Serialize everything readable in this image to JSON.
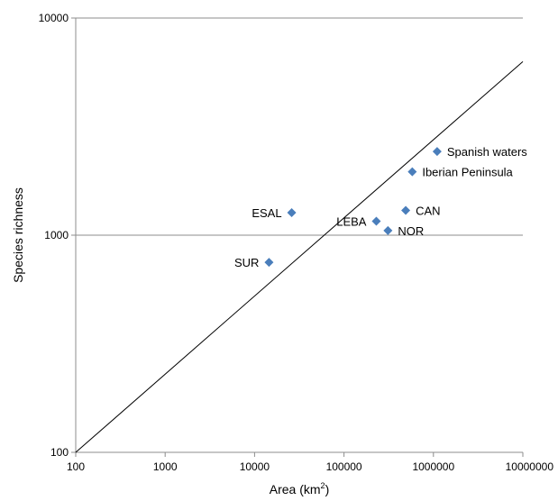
{
  "chart_data": {
    "type": "scatter",
    "title": "",
    "xlabel": "Area (km",
    "xlabel_sup": "2",
    "xlabel_suffix": ")",
    "ylabel": "Species richness",
    "x_scale": "log",
    "y_scale": "log",
    "xlim": [
      100,
      10000000
    ],
    "ylim": [
      100,
      10000
    ],
    "x_ticks": [
      "100",
      "1000",
      "10000",
      "100000",
      "1000000",
      "10000000"
    ],
    "y_ticks": [
      "100",
      "1000",
      "10000"
    ],
    "y_gridlines": [
      1000,
      10000
    ],
    "marker_color": "#4a7ebb",
    "points": [
      {
        "label": "Spanish waters",
        "x": 1100000,
        "y": 2430,
        "label_side": "right"
      },
      {
        "label": "Iberian Peninsula",
        "x": 580000,
        "y": 1960,
        "label_side": "right"
      },
      {
        "label": "ESAL",
        "x": 26000,
        "y": 1270,
        "label_side": "left"
      },
      {
        "label": "CAN",
        "x": 490000,
        "y": 1300,
        "label_side": "right"
      },
      {
        "label": "LEBA",
        "x": 230000,
        "y": 1160,
        "label_side": "left"
      },
      {
        "label": "NOR",
        "x": 310000,
        "y": 1050,
        "label_side": "right"
      },
      {
        "label": "SUR",
        "x": 14500,
        "y": 750,
        "label_side": "left"
      }
    ],
    "fit_line": {
      "x": [
        100,
        10000000
      ],
      "y": [
        100,
        6300
      ]
    }
  }
}
